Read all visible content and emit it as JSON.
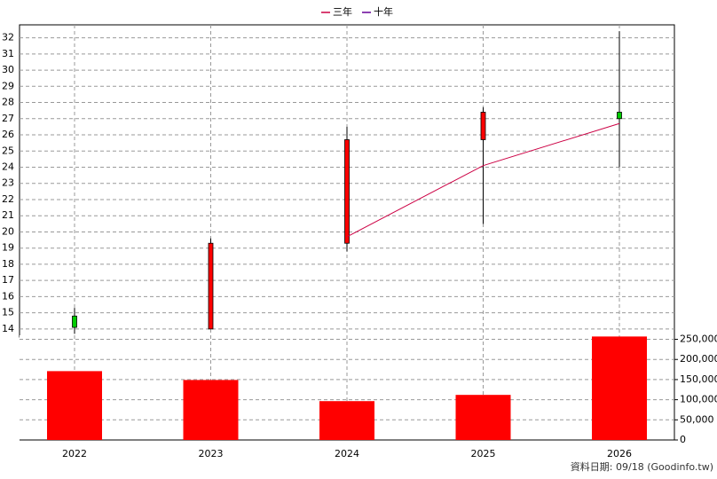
{
  "chart_data": {
    "type": "candlestick",
    "categories": [
      "2022",
      "2023",
      "2024",
      "2025",
      "2026"
    ],
    "open": [
      14.8,
      14.0,
      19.3,
      25.7,
      27.4
    ],
    "high": [
      15.3,
      19.6,
      26.5,
      27.7,
      32.4
    ],
    "low": [
      13.7,
      14.0,
      18.8,
      20.5,
      24.0
    ],
    "close": [
      14.1,
      19.3,
      25.7,
      27.4,
      27.0
    ],
    "up_color": "#ff0000",
    "down_color": "#00cc00",
    "series": [
      {
        "name": "三年",
        "color": "#cc0044",
        "values": [
          null,
          null,
          19.7,
          24.1,
          26.7
        ]
      },
      {
        "name": "十年",
        "color": "#660099",
        "values": [
          null,
          null,
          null,
          null,
          null
        ]
      }
    ],
    "ylim": [
      13.5,
      32.8
    ],
    "yticks": [
      14,
      15,
      16,
      17,
      18,
      19,
      20,
      21,
      22,
      23,
      24,
      25,
      26,
      27,
      28,
      29,
      30,
      31,
      32
    ],
    "grid": true,
    "volume": {
      "type": "bar",
      "color": "#ff0000",
      "values": [
        171000,
        149000,
        96500,
        112000,
        257000
      ],
      "ylim": [
        0,
        260000
      ],
      "yticks": [
        0,
        {
          "value": 50000,
          "label": "50,000"
        },
        {
          "value": 100000,
          "label": "100,000"
        },
        {
          "value": 150000,
          "label": "150,000"
        },
        {
          "value": 200000,
          "label": "200,000"
        },
        {
          "value": 250000,
          "label": "250,000"
        }
      ]
    },
    "annotation": "資料日期: 09/18  (Goodinfo.tw)"
  }
}
